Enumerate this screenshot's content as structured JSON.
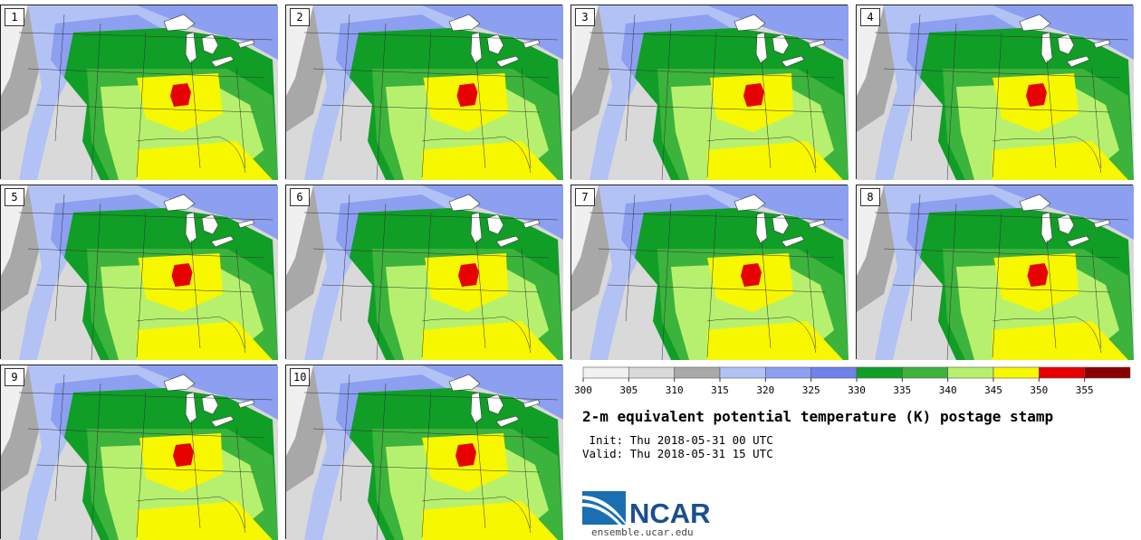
{
  "panels": [
    {
      "label": "1"
    },
    {
      "label": "2"
    },
    {
      "label": "3"
    },
    {
      "label": "4"
    },
    {
      "label": "5"
    },
    {
      "label": "6"
    },
    {
      "label": "7"
    },
    {
      "label": "8"
    },
    {
      "label": "9"
    },
    {
      "label": "10"
    }
  ],
  "colorbar": {
    "colors": [
      "#f0f0f0",
      "#d9d9d9",
      "#a8a8a8",
      "#b3c2f5",
      "#8c9ff0",
      "#6e82ea",
      "#109e26",
      "#3cb33c",
      "#b7f06e",
      "#f7f700",
      "#e60000",
      "#8b0000"
    ],
    "tick_labels": [
      "300",
      "305",
      "310",
      "315",
      "320",
      "325",
      "330",
      "335",
      "340",
      "345",
      "350",
      "355"
    ]
  },
  "title": "2-m equivalent potential temperature (K) postage stamp",
  "init_text": " Init: Thu 2018-05-31 00 UTC",
  "valid_text": "Valid: Thu 2018-05-31 15 UTC",
  "logo": {
    "text": "NCAR",
    "color": "#1b4f8f"
  },
  "url": "ensemble.ucar.edu"
}
